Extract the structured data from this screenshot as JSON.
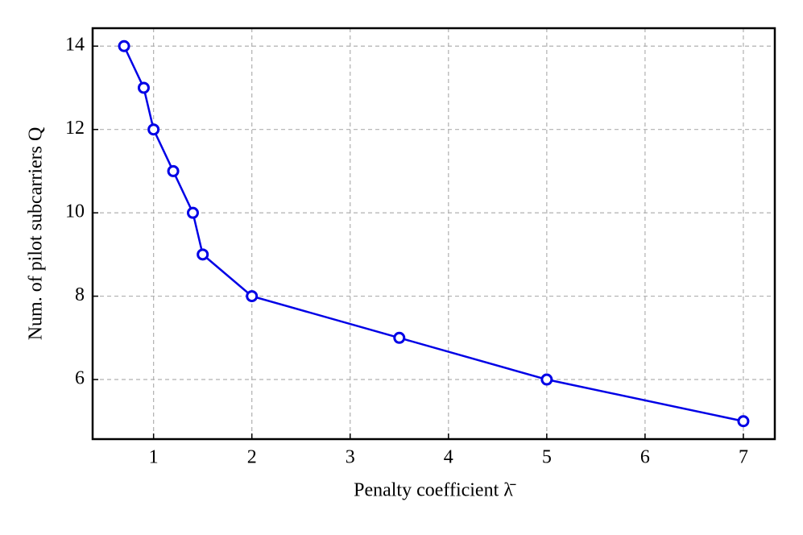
{
  "chart_data": {
    "type": "line",
    "xlabel": "Penalty coefficient λ̄",
    "ylabel": "Num. of pilot subcarriers Q",
    "x": [
      0.7,
      0.9,
      1.0,
      1.2,
      1.4,
      1.5,
      2,
      3.5,
      5,
      7
    ],
    "series": [
      {
        "color": "#0000e6",
        "values": [
          14,
          13,
          12,
          11,
          10,
          9,
          8,
          7,
          6,
          5
        ]
      }
    ],
    "xlim": [
      0.38,
      7.32
    ],
    "ylim": [
      4.57,
      14.43
    ],
    "xticks": [
      1,
      2,
      3,
      4,
      5,
      6,
      7
    ],
    "yticks": [
      6,
      8,
      10,
      12,
      14
    ],
    "grid": true
  }
}
